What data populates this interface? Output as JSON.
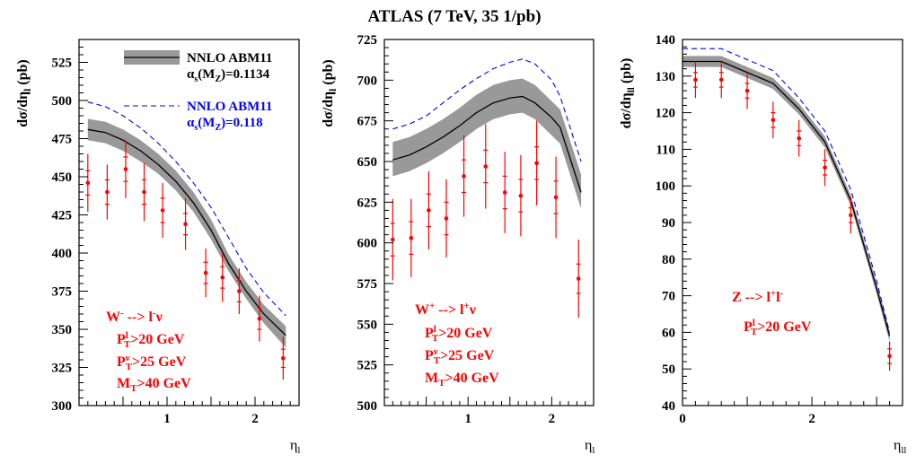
{
  "title": "ATLAS (7 TeV, 35 1/pb)",
  "colors": {
    "theory": "#000000",
    "band": "#999999",
    "alt": "#0000ff",
    "data": "#ff0000"
  },
  "chart_data": [
    {
      "type": "line",
      "ylabel": {
        "main": "dσ/dη",
        "sub": "l",
        "unit": " (pb)"
      },
      "xlabel": {
        "main": "η",
        "sub": "l"
      },
      "xlim": [
        0,
        2.5
      ],
      "ylim": [
        300,
        540
      ],
      "xticks": [
        {
          "v": 1,
          "label": "1"
        },
        {
          "v": 2,
          "label": "2"
        }
      ],
      "yticks": [
        300,
        325,
        350,
        375,
        400,
        425,
        450,
        475,
        500,
        525
      ],
      "legend": [
        {
          "kind": "band",
          "lines": [
            {
              "t": "NNLO ABM11",
              "s": "",
              "r": ""
            },
            {
              "t": "α",
              "s": "s",
              "r": "(M",
              "s2": "Z",
              "r2": ")=0.1134"
            }
          ]
        },
        {
          "kind": "dash",
          "lines": [
            {
              "t": "NNLO ABM11",
              "s": "",
              "r": ""
            },
            {
              "t": "α",
              "s": "s",
              "r": "(M",
              "s2": "Z",
              "r2": ")=0.118"
            }
          ]
        }
      ],
      "annotations": [
        {
          "main": "W",
          "sup": "-",
          "rest": " --> l",
          "sup2": "-",
          "rest2": "ν"
        },
        {
          "main": "P",
          "sub": "T",
          "sup": "l",
          "rest": ">20 GeV"
        },
        {
          "main": "P",
          "sub": "T",
          "sup": "ν",
          "rest": ">25 GeV"
        },
        {
          "main": "M",
          "sub": "T",
          "rest": ">40 GeV"
        }
      ],
      "theory": {
        "x": [
          0.1,
          0.3,
          0.5,
          0.7,
          0.9,
          1.1,
          1.3,
          1.5,
          1.7,
          1.9,
          2.1,
          2.35
        ],
        "y": [
          481,
          479,
          474,
          467,
          458,
          447,
          433,
          415,
          393,
          375,
          360,
          346
        ],
        "lo": [
          474,
          472,
          467,
          460,
          452,
          441,
          427,
          409,
          388,
          370,
          354,
          338
        ],
        "hi": [
          488,
          486,
          481,
          474,
          465,
          454,
          440,
          422,
          399,
          381,
          366,
          352
        ],
        "alt": [
          499,
          496,
          490,
          482,
          472,
          460,
          446,
          430,
          410,
          390,
          374,
          359
        ]
      },
      "data": {
        "x": [
          0.1,
          0.32,
          0.53,
          0.74,
          0.95,
          1.21,
          1.44,
          1.63,
          1.82,
          2.05,
          2.32
        ],
        "y": [
          446,
          440,
          455,
          440,
          428,
          419,
          387,
          384,
          375,
          357,
          331
        ],
        "err": [
          19,
          18,
          19,
          19,
          18,
          17,
          16,
          16,
          15,
          15,
          14
        ],
        "stat": [
          8,
          8,
          8,
          8,
          8,
          7,
          7,
          7,
          7,
          7,
          6
        ]
      }
    },
    {
      "type": "line",
      "ylabel": {
        "main": "dσ/dη",
        "sub": "l",
        "unit": " (pb)"
      },
      "xlabel": {
        "main": "η",
        "sub": "l"
      },
      "xlim": [
        0,
        2.5
      ],
      "ylim": [
        500,
        725
      ],
      "xticks": [
        {
          "v": 1,
          "label": "1"
        },
        {
          "v": 2,
          "label": "2"
        }
      ],
      "yticks": [
        500,
        525,
        550,
        575,
        600,
        625,
        650,
        675,
        700,
        725
      ],
      "legend": [],
      "annotations": [
        {
          "main": "W",
          "sup": "+",
          "rest": " --> l",
          "sup2": "+",
          "rest2": "ν"
        },
        {
          "main": "P",
          "sub": "T",
          "sup": "l",
          "rest": ">20 GeV"
        },
        {
          "main": "P",
          "sub": "T",
          "sup": "ν",
          "rest": ">25 GeV"
        },
        {
          "main": "M",
          "sub": "T",
          "rest": ">40 GeV"
        }
      ],
      "theory": {
        "x": [
          0.1,
          0.3,
          0.5,
          0.7,
          0.9,
          1.1,
          1.3,
          1.5,
          1.65,
          1.8,
          2.0,
          2.1,
          2.35
        ],
        "y": [
          651,
          654,
          659,
          665,
          672,
          680,
          686,
          689,
          690,
          686,
          677,
          671,
          631
        ],
        "lo": [
          641,
          644,
          649,
          655,
          662,
          670,
          676,
          679,
          680,
          676,
          666,
          661,
          621
        ],
        "hi": [
          662,
          665,
          670,
          676,
          683,
          691,
          697,
          700,
          701,
          697,
          687,
          682,
          642
        ],
        "alt": [
          670,
          673,
          678,
          686,
          694,
          701,
          707,
          711,
          713,
          710,
          700,
          690,
          650
        ]
      },
      "data": {
        "x": [
          0.1,
          0.32,
          0.53,
          0.74,
          0.95,
          1.21,
          1.44,
          1.63,
          1.82,
          2.05,
          2.32
        ],
        "y": [
          602,
          603,
          620,
          615,
          641,
          647,
          631,
          629,
          649,
          628,
          578
        ],
        "err": [
          25,
          24,
          24,
          24,
          25,
          26,
          25,
          25,
          26,
          25,
          24
        ],
        "stat": [
          10,
          10,
          10,
          10,
          10,
          10,
          10,
          10,
          10,
          10,
          9
        ]
      }
    },
    {
      "type": "line",
      "ylabel": {
        "main": "dσ/dη",
        "sub": "ll",
        "unit": " (pb)"
      },
      "xlabel": {
        "main": "η",
        "sub": "ll"
      },
      "xlim": [
        0,
        3.4
      ],
      "ylim": [
        40,
        140
      ],
      "xticks": [
        {
          "v": 0,
          "label": "0"
        },
        {
          "v": 2,
          "label": "2"
        }
      ],
      "yticks": [
        40,
        50,
        60,
        70,
        80,
        90,
        100,
        110,
        120,
        130,
        140
      ],
      "legend": [],
      "annotations": [
        {
          "main": "Z --> l",
          "sup": "+",
          "rest": "l",
          "sup2": "-",
          "rest2": ""
        },
        {
          "main": "P",
          "sub": "T",
          "sup": "l",
          "rest": ">20 GeV"
        }
      ],
      "theory": {
        "x": [
          0.0,
          0.6,
          1.0,
          1.4,
          1.8,
          2.2,
          2.6,
          3.0,
          3.2
        ],
        "y": [
          134,
          134,
          131,
          128,
          121,
          112,
          96,
          72,
          59
        ],
        "lo": [
          132.5,
          132.5,
          129.5,
          126.5,
          119.5,
          110.5,
          94.5,
          70.5,
          57.5
        ],
        "hi": [
          135.5,
          135.5,
          132.5,
          129.5,
          122.5,
          113.5,
          97.5,
          73.5,
          60.5
        ],
        "alt": [
          137.5,
          137.5,
          134.5,
          131.5,
          124,
          115,
          99,
          74,
          60
        ]
      },
      "data": {
        "x": [
          0.2,
          0.6,
          1.0,
          1.4,
          1.8,
          2.2,
          2.6,
          3.2
        ],
        "y": [
          129,
          129,
          126,
          118,
          113,
          105,
          92,
          53.5
        ],
        "err": [
          5,
          5,
          5,
          5,
          5,
          5,
          5,
          4
        ],
        "stat": [
          2,
          2,
          2,
          2,
          2,
          2,
          2,
          2
        ]
      }
    }
  ]
}
